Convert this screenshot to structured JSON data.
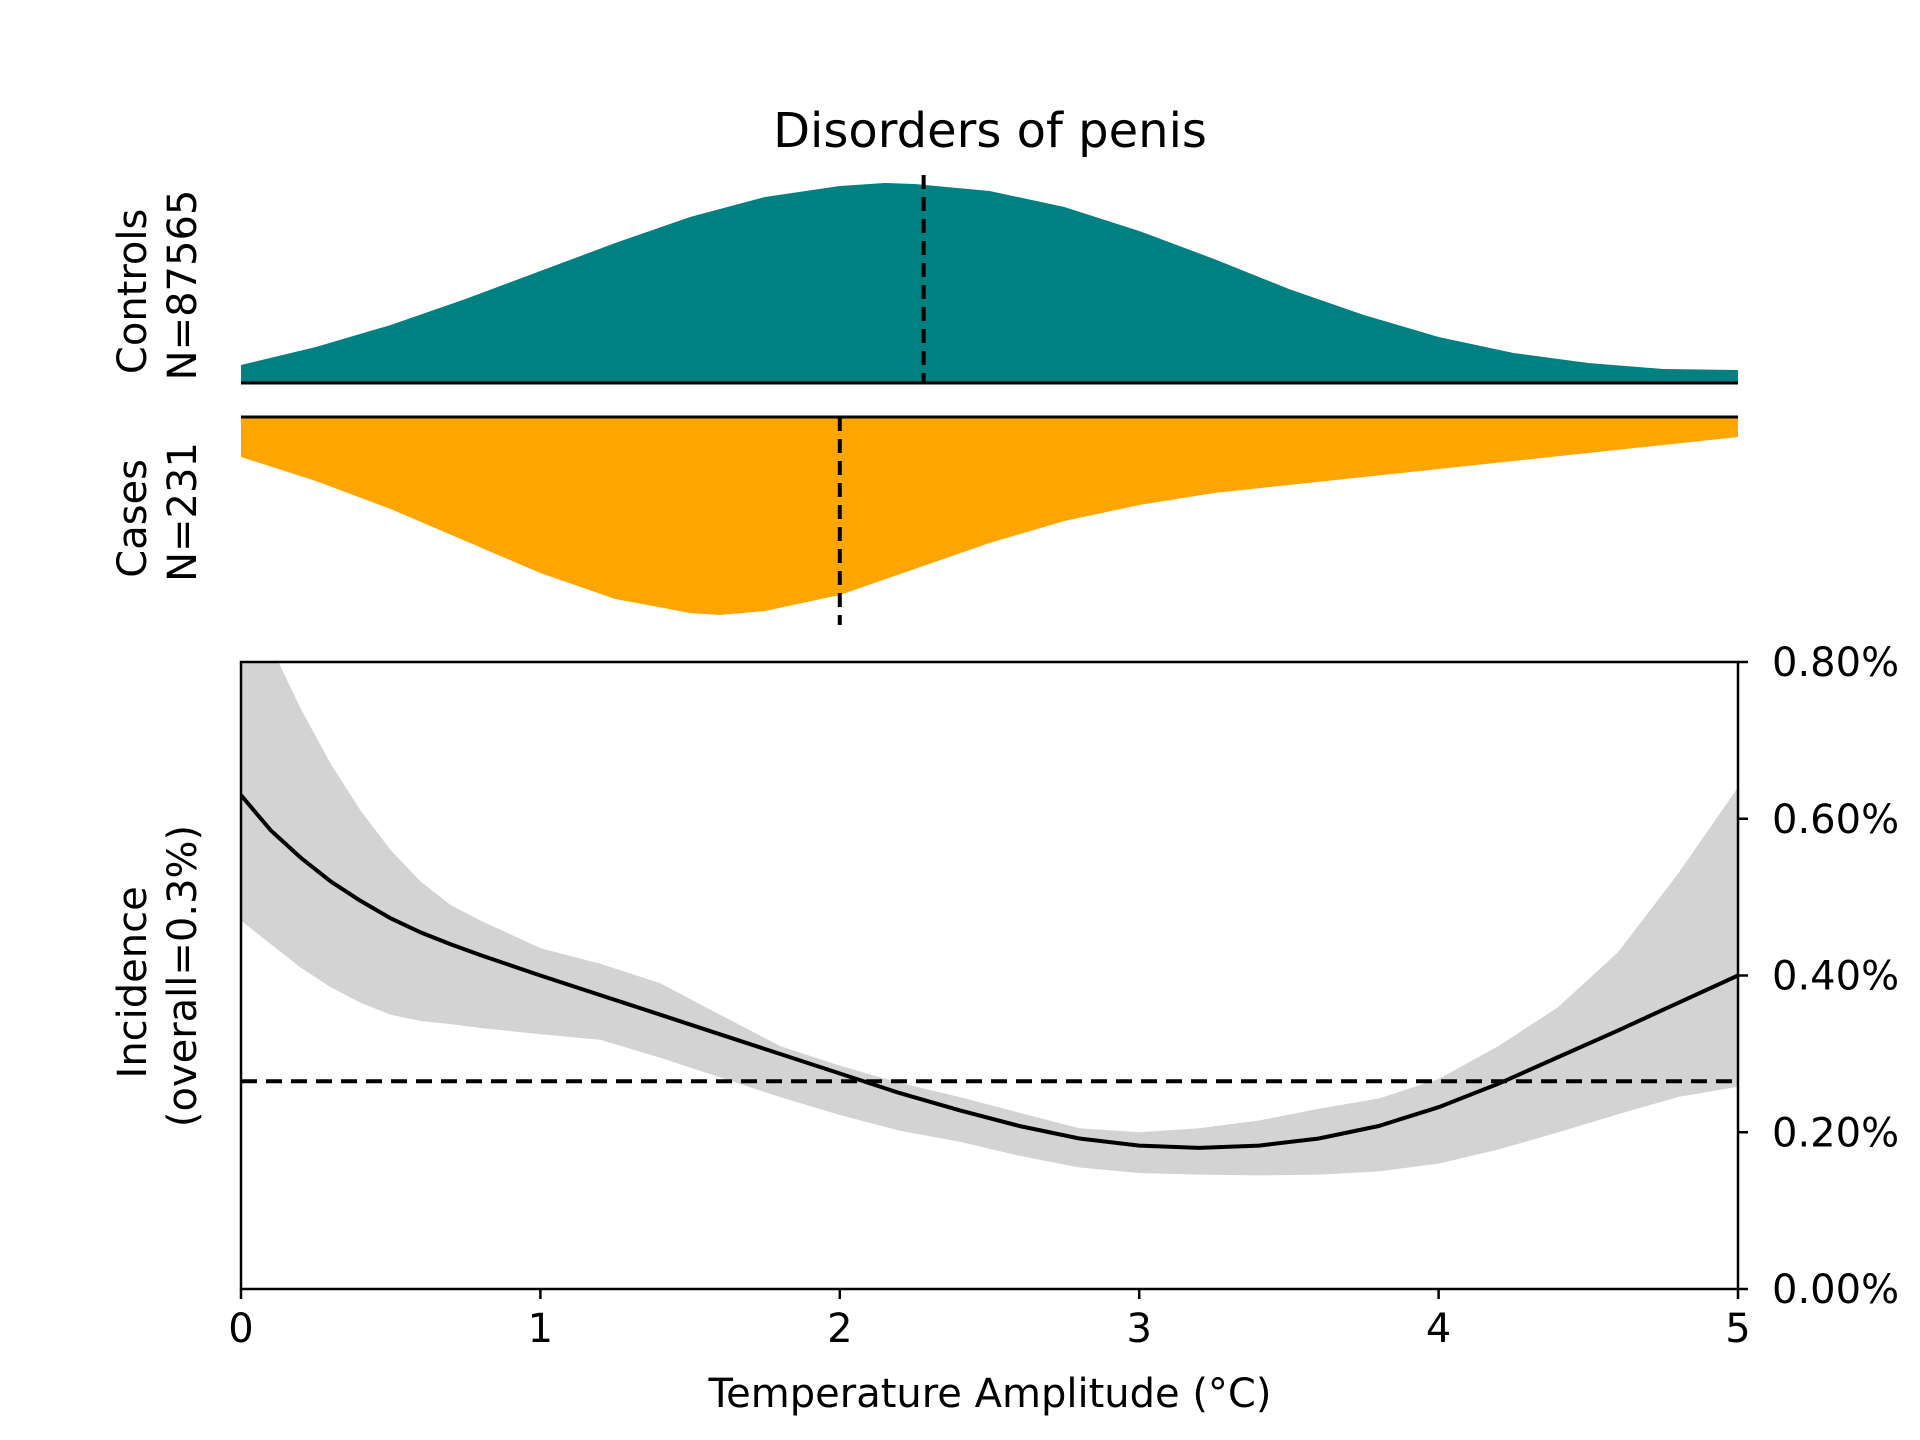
{
  "chart_data": [
    {
      "type": "area",
      "title": "Disorders of penis",
      "label_lines": [
        "Controls",
        "N=87565"
      ],
      "color": "#008080",
      "median": 2.28,
      "x": [
        0,
        0.25,
        0.5,
        0.75,
        1.0,
        1.25,
        1.5,
        1.75,
        2.0,
        2.15,
        2.25,
        2.5,
        2.75,
        3.0,
        3.25,
        3.5,
        3.75,
        4.0,
        4.25,
        4.5,
        4.75,
        5.0
      ],
      "density": [
        0.09,
        0.18,
        0.29,
        0.42,
        0.56,
        0.7,
        0.83,
        0.93,
        0.985,
        1.0,
        0.995,
        0.96,
        0.88,
        0.76,
        0.62,
        0.47,
        0.34,
        0.23,
        0.15,
        0.1,
        0.07,
        0.065
      ]
    },
    {
      "type": "area",
      "label_lines": [
        "Cases",
        "N=231"
      ],
      "color": "#ffa500",
      "median": 2.0,
      "x": [
        0,
        0.25,
        0.5,
        0.75,
        1.0,
        1.25,
        1.5,
        1.6,
        1.75,
        2.0,
        2.25,
        2.5,
        2.75,
        3.0,
        3.25,
        3.5,
        3.75,
        4.0,
        4.25,
        4.5,
        4.75,
        5.0
      ],
      "density": [
        0.2,
        0.32,
        0.46,
        0.62,
        0.78,
        0.91,
        0.98,
        0.99,
        0.97,
        0.89,
        0.76,
        0.63,
        0.52,
        0.44,
        0.38,
        0.34,
        0.3,
        0.26,
        0.22,
        0.18,
        0.14,
        0.1
      ]
    },
    {
      "type": "line",
      "xlabel": "Temperature Amplitude (°C)",
      "ylabel_lines": [
        "Incidence",
        "(overall=0.3%)"
      ],
      "xlim": [
        0,
        5
      ],
      "ylim": [
        0,
        0.8
      ],
      "x_ticks": [
        "0",
        "1",
        "2",
        "3",
        "4",
        "5"
      ],
      "y_ticks": [
        "0.00%",
        "0.20%",
        "0.40%",
        "0.60%",
        "0.80%"
      ],
      "y_tick_values": [
        0,
        0.2,
        0.4,
        0.6,
        0.8
      ],
      "reference_line": 0.265,
      "band_color": "#d3d3d3",
      "x": [
        0,
        0.1,
        0.2,
        0.3,
        0.4,
        0.5,
        0.6,
        0.7,
        0.8,
        1.0,
        1.2,
        1.4,
        1.6,
        1.8,
        2.0,
        2.2,
        2.4,
        2.6,
        2.8,
        3.0,
        3.2,
        3.4,
        3.6,
        3.8,
        4.0,
        4.2,
        4.4,
        4.6,
        4.8,
        5.0
      ],
      "series": [
        {
          "values": [
            0.63,
            0.585,
            0.55,
            0.52,
            0.495,
            0.473,
            0.455,
            0.44,
            0.426,
            0.4,
            0.375,
            0.35,
            0.325,
            0.3,
            0.275,
            0.25,
            0.228,
            0.208,
            0.192,
            0.183,
            0.18,
            0.183,
            0.192,
            0.208,
            0.232,
            0.262,
            0.296,
            0.33,
            0.365,
            0.4
          ],
          "lower": [
            0.47,
            0.44,
            0.41,
            0.385,
            0.365,
            0.35,
            0.342,
            0.338,
            0.333,
            0.325,
            0.318,
            0.295,
            0.27,
            0.245,
            0.222,
            0.202,
            0.188,
            0.17,
            0.155,
            0.148,
            0.146,
            0.145,
            0.146,
            0.15,
            0.16,
            0.178,
            0.2,
            0.223,
            0.245,
            0.258
          ],
          "upper": [
            0.85,
            0.82,
            0.74,
            0.67,
            0.61,
            0.56,
            0.52,
            0.49,
            0.47,
            0.435,
            0.415,
            0.39,
            0.35,
            0.31,
            0.285,
            0.263,
            0.245,
            0.225,
            0.205,
            0.2,
            0.205,
            0.215,
            0.23,
            0.243,
            0.268,
            0.31,
            0.36,
            0.43,
            0.53,
            0.64
          ]
        }
      ]
    }
  ]
}
